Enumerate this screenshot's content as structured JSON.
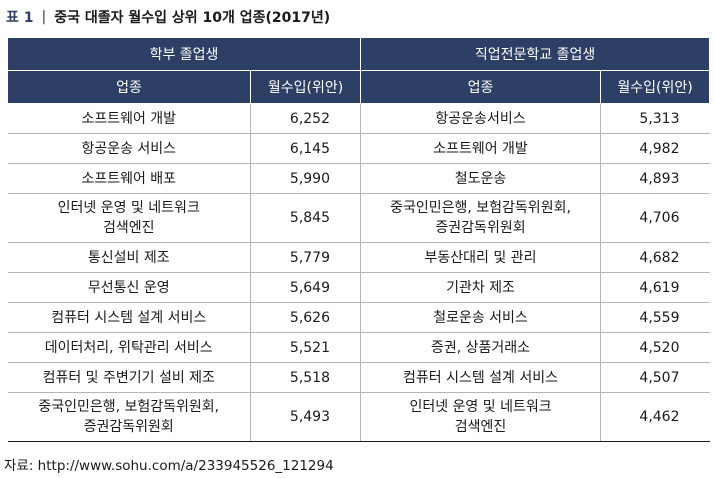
{
  "title": {
    "prefix": "표 1",
    "bar": "|",
    "text": "중국 대졸자 월수입 상위 10개 업종(2017년)"
  },
  "groups": [
    "학부 졸업생",
    "직업전문학교 졸업생"
  ],
  "subheaders": [
    "업종",
    "월수입(위안)",
    "업종",
    "월수입(위안)"
  ],
  "rows": [
    {
      "ind1": "소프트웨어 개발",
      "val1": "6,252",
      "ind2": "항공운송서비스",
      "val2": "5,313"
    },
    {
      "ind1": "항공운송 서비스",
      "val1": "6,145",
      "ind2": "소프트웨어 개발",
      "val2": "4,982"
    },
    {
      "ind1": "소프트웨어 배포",
      "val1": "5,990",
      "ind2": "철도운송",
      "val2": "4,893"
    },
    {
      "ind1": "인터넷 운영 및 네트워크\n검색엔진",
      "val1": "5,845",
      "ind2": "중국인민은행, 보험감독위원회,\n증권감독위원회",
      "val2": "4,706"
    },
    {
      "ind1": "통신설비 제조",
      "val1": "5,779",
      "ind2": "부동산대리 및 관리",
      "val2": "4,682"
    },
    {
      "ind1": "무선통신 운영",
      "val1": "5,649",
      "ind2": "기관차 제조",
      "val2": "4,619"
    },
    {
      "ind1": "컴퓨터 시스템 설계 서비스",
      "val1": "5,626",
      "ind2": "철로운송 서비스",
      "val2": "4,559"
    },
    {
      "ind1": "데이터처리, 위탁관리 서비스",
      "val1": "5,521",
      "ind2": "증권, 상품거래소",
      "val2": "4,520"
    },
    {
      "ind1": "컴퓨터 및 주변기기 설비 제조",
      "val1": "5,518",
      "ind2": "컴퓨터 시스템 설계 서비스",
      "val2": "4,507"
    },
    {
      "ind1": "중국인민은행, 보험감독위원회,\n증권감독위원회",
      "val1": "5,493",
      "ind2": "인터넷 운영 및 네트워크\n검색엔진",
      "val2": "4,462"
    }
  ],
  "source": "자료: http://www.sohu.com/a/233945526_121294"
}
